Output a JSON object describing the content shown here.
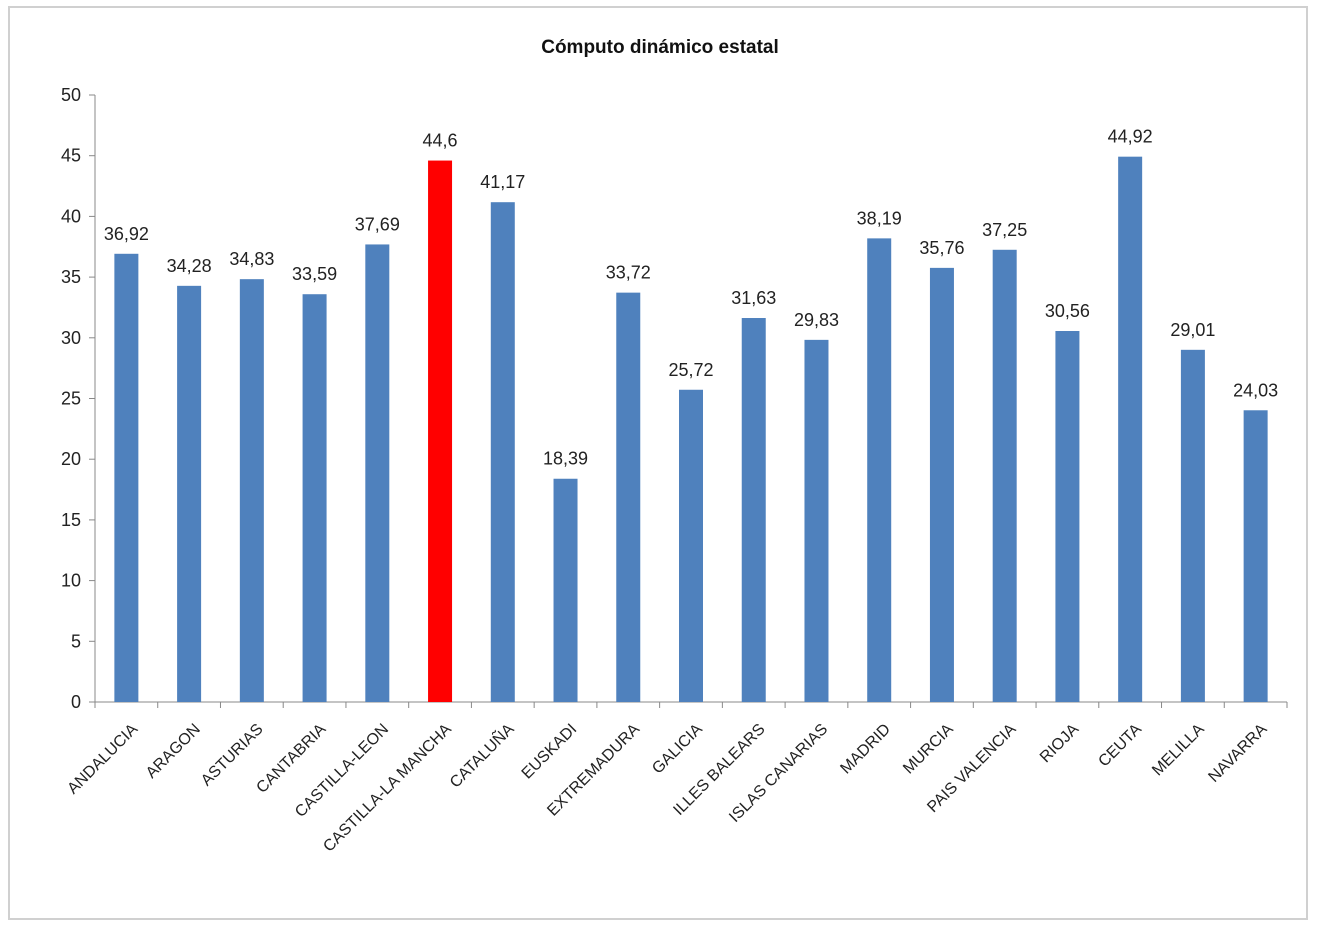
{
  "chart_data": {
    "type": "bar",
    "title": "Cómputo dinámico estatal",
    "xlabel": "",
    "ylabel": "",
    "ylim": [
      0,
      50
    ],
    "yticks": [
      0,
      5,
      10,
      15,
      20,
      25,
      30,
      35,
      40,
      45,
      50
    ],
    "grid": false,
    "legend": "none",
    "categories": [
      "ANDALUCIA",
      "ARAGON",
      "ASTURIAS",
      "CANTABRIA",
      "CASTILLA-LEON",
      "CASTILLA-LA MANCHA",
      "CATALUÑA",
      "EUSKADI",
      "EXTREMADURA",
      "GALICIA",
      "ILLES BALEARS",
      "ISLAS CANARIAS",
      "MADRID",
      "MURCIA",
      "PAIS VALENCIA",
      "RIOJA",
      "CEUTA",
      "MELILLA",
      "NAVARRA"
    ],
    "values": [
      36.92,
      34.28,
      34.83,
      33.59,
      37.69,
      44.6,
      41.17,
      18.39,
      33.72,
      25.72,
      31.63,
      29.83,
      38.19,
      35.76,
      37.25,
      30.56,
      44.92,
      29.01,
      24.03
    ],
    "data_labels": [
      "36,92",
      "34,28",
      "34,83",
      "33,59",
      "37,69",
      "44,6",
      "41,17",
      "18,39",
      "33,72",
      "25,72",
      "31,63",
      "29,83",
      "38,19",
      "35,76",
      "37,25",
      "30,56",
      "44,92",
      "29,01",
      "24,03"
    ],
    "colors": {
      "default": "#4f81bd",
      "highlight": "#ff0000",
      "axis": "#888888"
    },
    "highlight_index": 5
  }
}
